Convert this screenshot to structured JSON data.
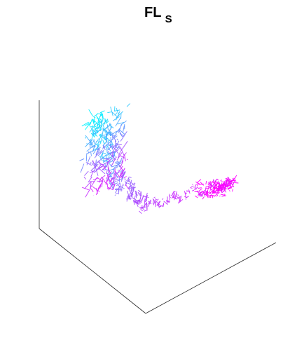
{
  "chart_data": {
    "type": "line",
    "title": "FL",
    "title_subscript": "S",
    "projection": "3d",
    "grid": false,
    "tick_labels": false,
    "axes": {
      "x": {
        "label": ""
      },
      "y": {
        "label": ""
      },
      "z": {
        "label": ""
      }
    },
    "colormap": {
      "start": "#00ffff",
      "end": "#ff00ff"
    },
    "series": [
      {
        "color_start": "#00ffff",
        "color_end": "#ff00ff",
        "x": [
          0.05,
          0.12,
          0.08,
          0.15,
          0.1,
          0.18,
          0.14,
          0.2,
          0.16,
          0.22,
          0.19,
          0.25,
          0.21,
          0.28,
          0.24,
          0.3
        ],
        "y": [
          0.1,
          0.06,
          0.14,
          0.09,
          0.18,
          0.12,
          0.22,
          0.16,
          0.25,
          0.19,
          0.28,
          0.22,
          0.31,
          0.26,
          0.33,
          0.29
        ],
        "z": [
          0.85,
          0.92,
          0.78,
          0.88,
          0.7,
          0.8,
          0.62,
          0.74,
          0.55,
          0.66,
          0.48,
          0.58,
          0.42,
          0.5,
          0.36,
          0.44
        ]
      },
      {
        "color_start": "#00ffff",
        "color_end": "#ff00ff",
        "x": [
          0.3,
          0.34,
          0.31,
          0.38,
          0.36,
          0.42,
          0.4,
          0.47,
          0.52,
          0.58,
          0.63,
          0.7,
          0.76,
          0.82,
          0.88,
          0.92,
          0.86,
          0.94,
          0.8,
          0.9
        ],
        "y": [
          0.29,
          0.33,
          0.3,
          0.35,
          0.38,
          0.36,
          0.41,
          0.39,
          0.43,
          0.4,
          0.45,
          0.42,
          0.47,
          0.44,
          0.49,
          0.46,
          0.5,
          0.48,
          0.52,
          0.49
        ],
        "z": [
          0.44,
          0.38,
          0.3,
          0.34,
          0.26,
          0.3,
          0.22,
          0.27,
          0.24,
          0.3,
          0.26,
          0.33,
          0.28,
          0.35,
          0.3,
          0.36,
          0.31,
          0.34,
          0.29,
          0.33
        ]
      }
    ]
  }
}
